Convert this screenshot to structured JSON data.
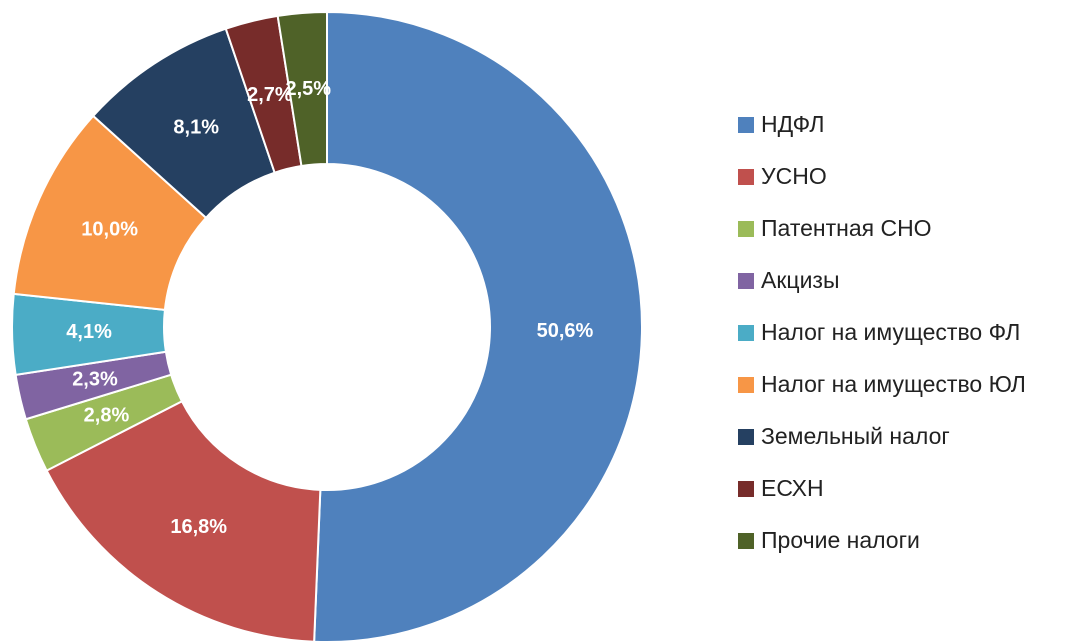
{
  "chart_data": {
    "type": "donut",
    "categories": [
      "НДФЛ",
      "УСНО",
      "Патентная СНО",
      "Акцизы",
      "Налог на имущество ФЛ",
      "Налог на имущество ЮЛ",
      "Земельный налог",
      "ЕСХН",
      "Прочие налоги"
    ],
    "values": [
      50.6,
      16.8,
      2.8,
      2.3,
      4.1,
      10.0,
      8.1,
      2.7,
      2.5
    ],
    "value_labels": [
      "50,6%",
      "16,8%",
      "2,8%",
      "2,3%",
      "4,1%",
      "10,0%",
      "8,1%",
      "2,7%",
      "2,5%"
    ],
    "colors": [
      "#4f81bd",
      "#c0504d",
      "#9bbb59",
      "#8064a2",
      "#4bacc6",
      "#f79646",
      "#254061",
      "#772c2a",
      "#4f6228"
    ],
    "legend": "right"
  }
}
